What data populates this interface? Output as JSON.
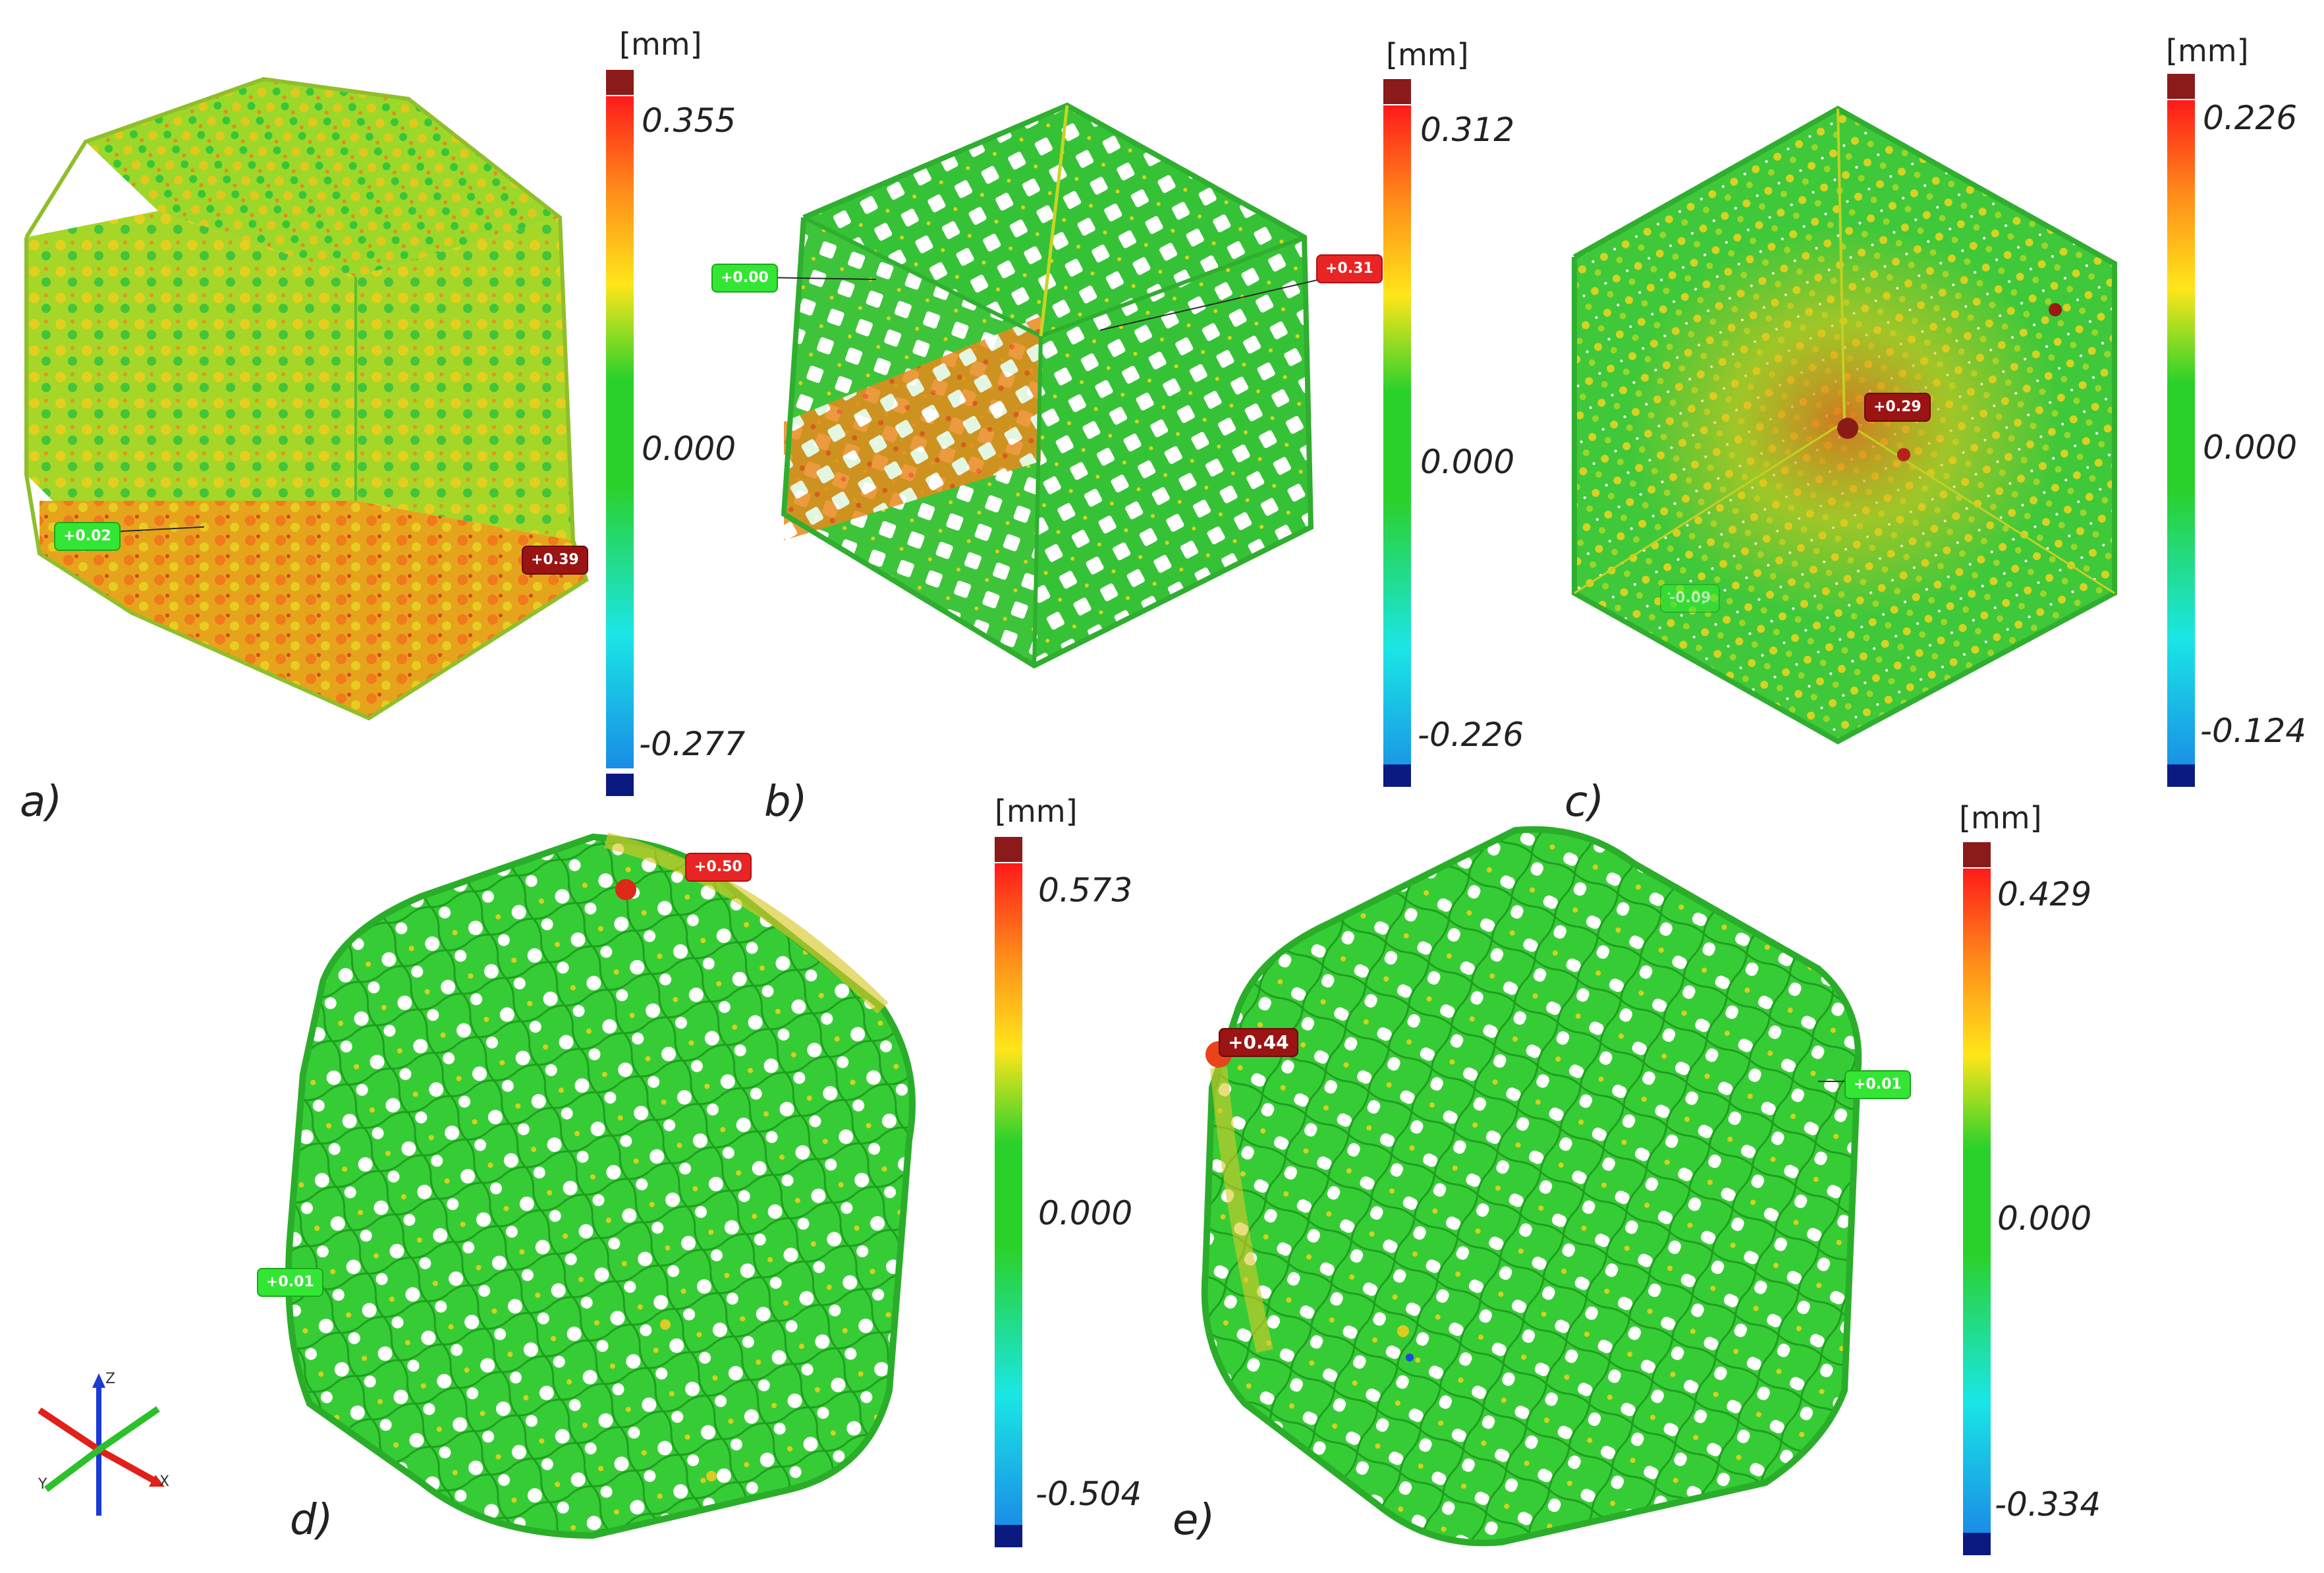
{
  "panels": [
    {
      "id": "a",
      "label": "a)",
      "unit": "[mm]",
      "max": "0.355",
      "zero": "0.000",
      "min": "-0.277",
      "flags": [
        {
          "text": "+0.02",
          "color": "green"
        },
        {
          "text": "+0.39",
          "color": "darkred"
        }
      ],
      "style": "dense"
    },
    {
      "id": "b",
      "label": "b)",
      "unit": "[mm]",
      "max": "0.312",
      "zero": "0.000",
      "min": "-0.226",
      "flags": [
        {
          "text": "+0.00",
          "color": "green"
        },
        {
          "text": "+0.31",
          "color": "red"
        }
      ],
      "style": "lattice"
    },
    {
      "id": "c",
      "label": "c)",
      "unit": "[mm]",
      "max": "0.226",
      "zero": "0.000",
      "min": "-0.124",
      "flags": [
        {
          "text": "+0.29",
          "color": "darkred"
        },
        {
          "text": "-0.09",
          "color": "green"
        }
      ],
      "style": "dense-orange"
    },
    {
      "id": "d",
      "label": "d)",
      "unit": "[mm]",
      "max": "0.573",
      "zero": "0.000",
      "min": "-0.504",
      "flags": [
        {
          "text": "+0.50",
          "color": "red"
        },
        {
          "text": "+0.01",
          "color": "green"
        }
      ],
      "style": "porous"
    },
    {
      "id": "e",
      "label": "e)",
      "unit": "[mm]",
      "max": "0.429",
      "zero": "0.000",
      "min": "-0.334",
      "flags": [
        {
          "text": "+0.44",
          "color": "darkred"
        },
        {
          "text": "+0.01",
          "color": "green"
        }
      ],
      "style": "porous"
    }
  ],
  "colors": {
    "max_swatch": "#8b1a1a",
    "min_swatch": "#0a1a80",
    "gradient": [
      "#ff1a1a",
      "#ff8c1a",
      "#ffe61a",
      "#2bd12b",
      "#2bd12b",
      "#1ae6e6",
      "#1a8ce6"
    ],
    "green": "#33cc33",
    "yellow": "#d9d926",
    "orange": "#ff6a1a"
  },
  "axes": {
    "z": "Z",
    "x": "X",
    "y": "Y"
  }
}
